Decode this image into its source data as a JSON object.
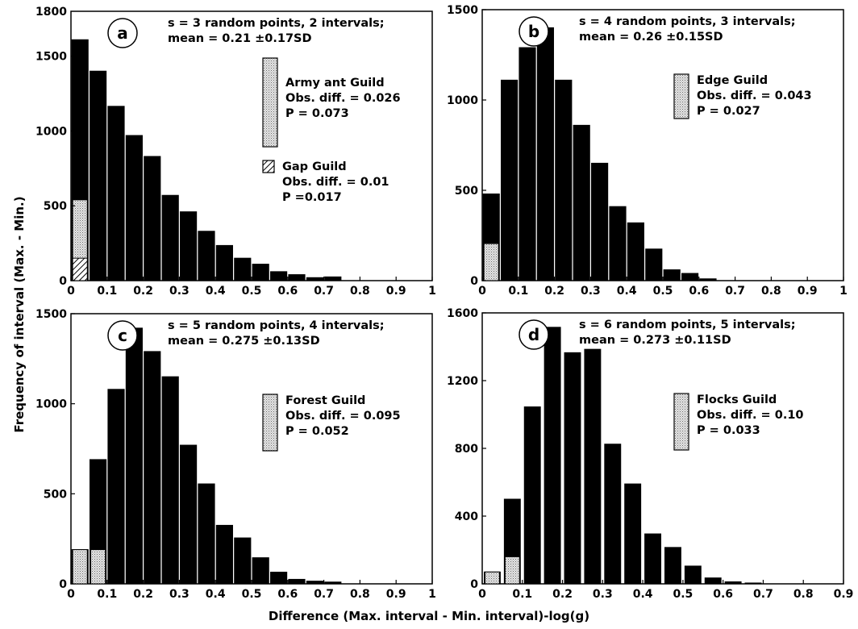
{
  "figure": {
    "ylabel": "Frequency of interval (Max. - Min.)",
    "xlabel": "Difference (Max. interval - Min. interval)-log(g)"
  },
  "colors": {
    "bar": "#000000",
    "stipple": "#cfcfcf",
    "hatch": "#000000"
  },
  "chart_data": [
    {
      "type": "bar",
      "panel": "a",
      "title_lines": [
        "s = 3 random points, 2 intervals;",
        "mean = 0.21 ±0.17SD"
      ],
      "xlim": [
        0,
        1
      ],
      "ylim": [
        0,
        1800
      ],
      "xticks": [
        "0",
        "0.1",
        "0.2",
        "0.3",
        "0.4",
        "0.5",
        "0.6",
        "0.7",
        "0.8",
        "0.9",
        "1"
      ],
      "yticks": [
        0,
        500,
        1000,
        1500
      ],
      "ytick_top": 1800,
      "bar_width": 0.045,
      "x": [
        0.025,
        0.075,
        0.125,
        0.175,
        0.225,
        0.275,
        0.325,
        0.375,
        0.425,
        0.475,
        0.525,
        0.575,
        0.625,
        0.675,
        0.725,
        0.775,
        0.825,
        0.875,
        0.925
      ],
      "values": [
        1610,
        1400,
        1165,
        970,
        830,
        570,
        460,
        330,
        235,
        150,
        110,
        60,
        40,
        20,
        25,
        0,
        0,
        0,
        0
      ],
      "overlays": [
        {
          "x": 0.025,
          "value": 540,
          "fill": "stipple"
        },
        {
          "x": 0.025,
          "value": 150,
          "fill": "hatch"
        }
      ],
      "legend": [
        {
          "fill": "stipple",
          "value": 1500,
          "lines": [
            "Army ant Guild",
            "Obs. diff. = 0.026",
            "P = 0.073"
          ]
        },
        {
          "fill": "hatch",
          "value": 130,
          "lines": [
            "Gap Guild",
            "Obs. diff. = 0.01",
            "P =0.017"
          ]
        }
      ]
    },
    {
      "type": "bar",
      "panel": "b",
      "title_lines": [
        "s = 4 random points, 3 intervals;",
        "mean = 0.26 ±0.15SD"
      ],
      "xlim": [
        0,
        1
      ],
      "ylim": [
        0,
        1500
      ],
      "xticks": [
        "0",
        "0.1",
        "0.2",
        "0.3",
        "0.4",
        "0.5",
        "0.6",
        "0.7",
        "0.8",
        "0.9",
        "1"
      ],
      "yticks": [
        0,
        500,
        1000,
        1500
      ],
      "ytick_top": null,
      "bar_width": 0.045,
      "x": [
        0.025,
        0.075,
        0.125,
        0.175,
        0.225,
        0.275,
        0.325,
        0.375,
        0.425,
        0.475,
        0.525,
        0.575,
        0.625,
        0.675,
        0.725,
        0.775,
        0.825,
        0.875,
        0.925
      ],
      "values": [
        480,
        1110,
        1290,
        1400,
        1110,
        860,
        650,
        410,
        320,
        175,
        60,
        40,
        10,
        0,
        0,
        0,
        0,
        0,
        0
      ],
      "overlays": [
        {
          "x": 0.025,
          "value": 205,
          "fill": "stipple"
        }
      ],
      "legend": [
        {
          "fill": "stipple",
          "value": 270,
          "lines": [
            "Edge Guild",
            "Obs. diff. = 0.043",
            "P = 0.027"
          ]
        }
      ]
    },
    {
      "type": "bar",
      "panel": "c",
      "title_lines": [
        "s = 5 random points, 4 intervals;",
        "mean = 0.275 ±0.13SD"
      ],
      "xlim": [
        0,
        1
      ],
      "ylim": [
        0,
        1500
      ],
      "xticks": [
        "0",
        "0.1",
        "0.2",
        "0.3",
        "0.4",
        "0.5",
        "0.6",
        "0.7",
        "0.8",
        "0.9",
        "1"
      ],
      "yticks": [
        0,
        500,
        1000,
        1500
      ],
      "ytick_top": null,
      "bar_width": 0.045,
      "x": [
        0.025,
        0.075,
        0.125,
        0.175,
        0.225,
        0.275,
        0.325,
        0.375,
        0.425,
        0.475,
        0.525,
        0.575,
        0.625,
        0.675,
        0.725,
        0.775,
        0.825,
        0.875,
        0.925
      ],
      "values": [
        190,
        690,
        1080,
        1420,
        1290,
        1150,
        770,
        555,
        325,
        255,
        145,
        65,
        25,
        15,
        10,
        0,
        0,
        0,
        0
      ],
      "overlays": [
        {
          "x": 0.025,
          "value": 190,
          "fill": "stipple"
        },
        {
          "x": 0.075,
          "value": 190,
          "fill": "stipple"
        }
      ],
      "legend": [
        {
          "fill": "stipple",
          "value": 570,
          "lines": [
            "Forest Guild",
            "Obs. diff. = 0.095",
            "P = 0.052"
          ]
        }
      ]
    },
    {
      "type": "bar",
      "panel": "d",
      "title_lines": [
        "s = 6 random points, 5 intervals;",
        "mean = 0.273 ±0.11SD"
      ],
      "xlim": [
        0,
        0.9
      ],
      "ylim": [
        0,
        1600
      ],
      "xticks": [
        "0",
        "0.1",
        "0.2",
        "0.3",
        "0.4",
        "0.5",
        "0.6",
        "0.7",
        "0.8",
        "0.9"
      ],
      "yticks": [
        0,
        400,
        800,
        1200,
        1600
      ],
      "ytick_top": null,
      "bar_width": 0.04,
      "x": [
        0.025,
        0.075,
        0.125,
        0.175,
        0.225,
        0.275,
        0.325,
        0.375,
        0.425,
        0.475,
        0.525,
        0.575,
        0.625,
        0.675,
        0.725,
        0.775,
        0.825
      ],
      "values": [
        70,
        500,
        1045,
        1515,
        1365,
        1385,
        825,
        590,
        295,
        215,
        105,
        35,
        12,
        5,
        0,
        0,
        0
      ],
      "overlays": [
        {
          "x": 0.025,
          "value": 70,
          "fill": "stipple"
        },
        {
          "x": 0.075,
          "value": 160,
          "fill": "stipple"
        }
      ],
      "legend": [
        {
          "fill": "stipple",
          "value": 570,
          "lines": [
            "Flocks Guild",
            "Obs. diff. = 0.10",
            "P = 0.033"
          ]
        }
      ]
    }
  ]
}
